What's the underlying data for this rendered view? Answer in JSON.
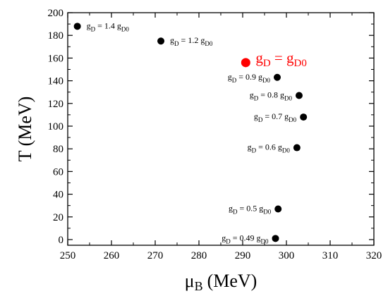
{
  "chart_data": {
    "type": "scatter",
    "title": "",
    "xlabel": {
      "main": "μ",
      "sub": "B",
      "unit": "(MeV)"
    },
    "ylabel": "T (MeV)",
    "xlim": [
      250,
      320
    ],
    "ylim": [
      -5,
      200
    ],
    "xticks": [
      250,
      260,
      270,
      280,
      290,
      300,
      310,
      320
    ],
    "yticks": [
      0,
      20,
      40,
      60,
      80,
      100,
      120,
      140,
      160,
      180,
      200
    ],
    "grid": false,
    "points": [
      {
        "x": 252.2,
        "y": 188,
        "label": {
          "g": "g",
          "gsub": "D",
          "mid": " = 1.4 g",
          "msub": "D0"
        },
        "color": "#000000",
        "highlight": false,
        "label_pos": "right"
      },
      {
        "x": 271.3,
        "y": 175,
        "label": {
          "g": "g",
          "gsub": "D",
          "mid": " = 1.2 g",
          "msub": "D0"
        },
        "color": "#000000",
        "highlight": false,
        "label_pos": "right"
      },
      {
        "x": 290.7,
        "y": 156,
        "label": {
          "g": "g",
          "gsub": "D",
          "mid": " = g",
          "msub": "D0"
        },
        "color": "#ff0000",
        "highlight": true,
        "label_pos": "right"
      },
      {
        "x": 297.9,
        "y": 143,
        "label": {
          "g": "g",
          "gsub": "D",
          "mid": " = 0.9 g",
          "msub": "D0"
        },
        "color": "#000000",
        "highlight": false,
        "label_pos": "left"
      },
      {
        "x": 302.9,
        "y": 127,
        "label": {
          "g": "g",
          "gsub": "D",
          "mid": " = 0.8 g",
          "msub": "D0"
        },
        "color": "#000000",
        "highlight": false,
        "label_pos": "left"
      },
      {
        "x": 303.9,
        "y": 108,
        "label": {
          "g": "g",
          "gsub": "D",
          "mid": " = 0.7 g",
          "msub": "D0"
        },
        "color": "#000000",
        "highlight": false,
        "label_pos": "left"
      },
      {
        "x": 302.4,
        "y": 81,
        "label": {
          "g": "g",
          "gsub": "D",
          "mid": " = 0.6 g",
          "msub": "D0"
        },
        "color": "#000000",
        "highlight": false,
        "label_pos": "left"
      },
      {
        "x": 298.1,
        "y": 27,
        "label": {
          "g": "g",
          "gsub": "D",
          "mid": " = 0.5 g",
          "msub": "D0"
        },
        "color": "#000000",
        "highlight": false,
        "label_pos": "left"
      },
      {
        "x": 297.5,
        "y": 1,
        "label": {
          "g": "g",
          "gsub": "D",
          "mid": " = 0.49 g",
          "msub": "D0"
        },
        "color": "#000000",
        "highlight": false,
        "label_pos": "left"
      }
    ]
  }
}
